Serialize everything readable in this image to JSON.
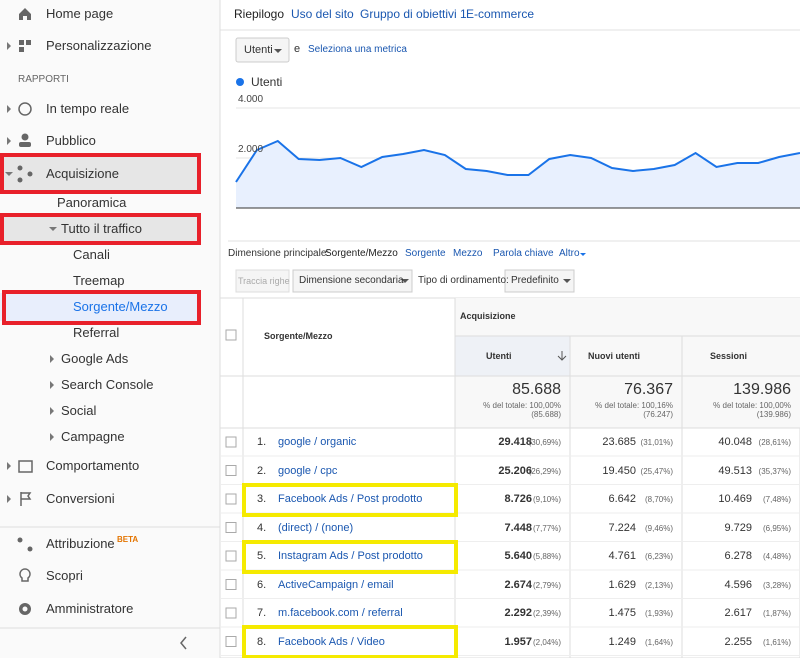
{
  "sidebar": {
    "items": [
      "Home page",
      "Personalizzazione",
      "RAPPORTI",
      "In tempo reale",
      "Pubblico",
      "Acquisizione",
      "Panoramica",
      "Tutto il traffico",
      "Canali",
      "Treemap",
      "Sorgente/Mezzo",
      "Referral",
      "Google Ads",
      "Search Console",
      "Social",
      "Campagne",
      "Comportamento",
      "Conversioni",
      "Attribuzione",
      "Scopri",
      "Amministratore"
    ],
    "badge": "BETA"
  },
  "tabs": [
    "Riepilogo",
    "Uso del sito",
    "Gruppo di obiettivi 1",
    "E-commerce"
  ],
  "metric": {
    "select": "Utenti",
    "joiner": "e",
    "link": "Seleziona una metrica"
  },
  "graph": {
    "legend": "Utenti",
    "ylim": [
      0,
      4000
    ],
    "yticks": [
      {
        "value": 2000,
        "label": "2.000"
      },
      {
        "value": 4000,
        "label": "4.000"
      }
    ],
    "values": [
      1040,
      2320,
      2680,
      1960,
      1920,
      2000,
      1640,
      2040,
      2160,
      2320,
      2120,
      1560,
      1480,
      1320,
      1320,
      1960,
      2120,
      2000,
      1600,
      1480,
      1560,
      1720,
      2200,
      1640,
      1800,
      1800,
      2040,
      2200
    ]
  },
  "dimension": {
    "label": "Dimensione principale:",
    "active": "Sorgente/Mezzo",
    "options": [
      "Sorgente",
      "Mezzo",
      "Parola chiave",
      "Altro"
    ]
  },
  "controls": {
    "plot_rows": "Traccia righe",
    "secondary": "Dimensione secondaria",
    "sort_label": "Tipo di ordinamento:",
    "sort": "Predefinito"
  },
  "table": {
    "group": "Acquisizione",
    "columns": [
      "Sorgente/Mezzo",
      "Utenti",
      "Nuovi utenti",
      "Sessioni"
    ],
    "totals": [
      [
        "85.688",
        "% del totale: 100,00%",
        "(85.688)"
      ],
      [
        "76.367",
        "% del totale: 100,16%",
        "(76.247)"
      ],
      [
        "139.986",
        "% del totale: 100,00%",
        "(139.986)"
      ]
    ],
    "rows": [
      [
        "1.",
        "google / organic",
        "29.418",
        "(30,69%)",
        "23.685",
        "(31,01%)",
        "40.048",
        "(28,61%)"
      ],
      [
        "2.",
        "google / cpc",
        "25.206",
        "(26,29%)",
        "19.450",
        "(25,47%)",
        "49.513",
        "(35,37%)"
      ],
      [
        "3.",
        "Facebook Ads / Post prodotto",
        "8.726",
        "(9,10%)",
        "6.642",
        "(8,70%)",
        "10.469",
        "(7,48%)"
      ],
      [
        "4.",
        "(direct) / (none)",
        "7.448",
        "(7,77%)",
        "7.224",
        "(9,46%)",
        "9.729",
        "(6,95%)"
      ],
      [
        "5.",
        "Instagram Ads / Post prodotto",
        "5.640",
        "(5,88%)",
        "4.761",
        "(6,23%)",
        "6.278",
        "(4,48%)"
      ],
      [
        "6.",
        "ActiveCampaign / email",
        "2.674",
        "(2,79%)",
        "1.629",
        "(2,13%)",
        "4.596",
        "(3,28%)"
      ],
      [
        "7.",
        "m.facebook.com / referral",
        "2.292",
        "(2,39%)",
        "1.475",
        "(1,93%)",
        "2.617",
        "(1,87%)"
      ],
      [
        "8.",
        "Facebook Ads / Video",
        "1.957",
        "(2,04%)",
        "1.249",
        "(1,64%)",
        "2.255",
        "(1,61%)"
      ]
    ]
  }
}
